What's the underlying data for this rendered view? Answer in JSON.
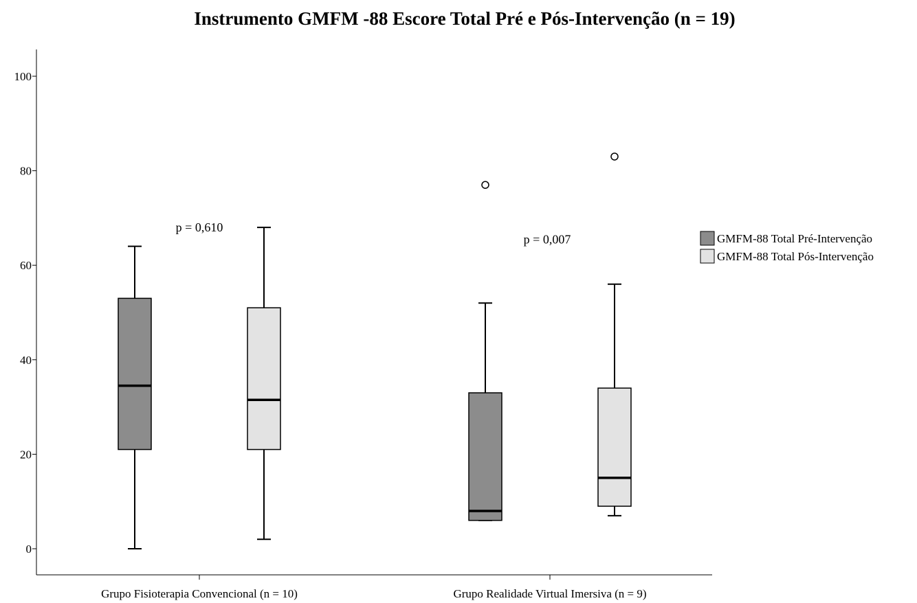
{
  "chart_data": {
    "type": "boxplot",
    "title": "Instrumento GMFM -88 Escore Total Pré e Pós-Intervenção (n = 19)",
    "xlabel": "",
    "ylabel": "",
    "ylim": [
      0,
      100
    ],
    "yticks": [
      "0",
      "20",
      "40",
      "60",
      "80",
      "100"
    ],
    "categories": [
      "Grupo Fisioterapia Convencional (n = 10)",
      "Grupo Realidade Virtual Imersiva (n = 9)"
    ],
    "series": [
      {
        "name": "GMFM-88 Total Pré-Intervenção",
        "color": "#8c8c8c",
        "boxes": [
          {
            "whisker_low": 0,
            "q1": 21,
            "median": 34.5,
            "q3": 53,
            "whisker_high": 64,
            "outliers": []
          },
          {
            "whisker_low": 6,
            "q1": 6,
            "median": 8,
            "q3": 33,
            "whisker_high": 52,
            "outliers": [
              77
            ]
          }
        ]
      },
      {
        "name": "GMFM-88 Total Pós-Intervenção",
        "color": "#e3e3e3",
        "boxes": [
          {
            "whisker_low": 2,
            "q1": 21,
            "median": 31.5,
            "q3": 51,
            "whisker_high": 68,
            "outliers": []
          },
          {
            "whisker_low": 7,
            "q1": 9,
            "median": 15,
            "q3": 34,
            "whisker_high": 56,
            "outliers": [
              83
            ]
          }
        ]
      }
    ],
    "annotations": [
      {
        "category": 0,
        "text": "p = 0,610",
        "y": 68
      },
      {
        "category": 1,
        "text": "p = 0,007",
        "y": 65.5
      }
    ],
    "legend_position": "right",
    "grid": false
  }
}
